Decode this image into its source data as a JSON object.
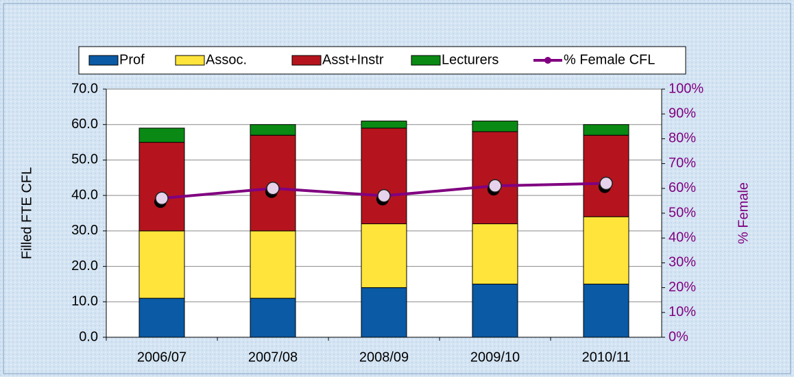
{
  "chart_data": {
    "type": "bar",
    "stacked": true,
    "categories": [
      "2006/07",
      "2007/08",
      "2008/09",
      "2009/10",
      "2010/11"
    ],
    "series": [
      {
        "name": "Prof",
        "color": "#0a5aa5",
        "values": [
          11,
          11,
          14,
          15,
          15
        ]
      },
      {
        "name": "Assoc.",
        "color": "#ffe53b",
        "values": [
          19,
          19,
          18,
          17,
          19
        ]
      },
      {
        "name": "Asst+Instr",
        "color": "#b5141e",
        "values": [
          25,
          27,
          27,
          26,
          23
        ]
      },
      {
        "name": "Lecturers",
        "color": "#0a8a14",
        "values": [
          4,
          3,
          2,
          3,
          3
        ]
      },
      {
        "name": "% Female CFL",
        "type": "line",
        "axis": "y2",
        "color": "#800080",
        "values": [
          56,
          60,
          57,
          61,
          62
        ]
      }
    ],
    "y_label": "Filled FTE CFL",
    "y2_label": "% Female",
    "ylim": [
      0,
      70
    ],
    "yticks": [
      {
        "value": 0,
        "label": "0.0"
      },
      {
        "value": 10,
        "label": "10.0"
      },
      {
        "value": 20,
        "label": "20.0"
      },
      {
        "value": 30,
        "label": "30.0"
      },
      {
        "value": 40,
        "label": "40.0"
      },
      {
        "value": 50,
        "label": "50.0"
      },
      {
        "value": 60,
        "label": "60.0"
      },
      {
        "value": 70,
        "label": "70.0"
      }
    ],
    "y2lim": [
      0,
      100
    ],
    "y2ticks": [
      {
        "value": 0,
        "label": "0%"
      },
      {
        "value": 10,
        "label": "10%"
      },
      {
        "value": 20,
        "label": "20%"
      },
      {
        "value": 30,
        "label": "30%"
      },
      {
        "value": 40,
        "label": "40%"
      },
      {
        "value": 50,
        "label": "50%"
      },
      {
        "value": 60,
        "label": "60%"
      },
      {
        "value": 70,
        "label": "70%"
      },
      {
        "value": 80,
        "label": "80%"
      },
      {
        "value": 90,
        "label": "90%"
      },
      {
        "value": 100,
        "label": "100%"
      }
    ],
    "grid": true,
    "legend": "top"
  }
}
